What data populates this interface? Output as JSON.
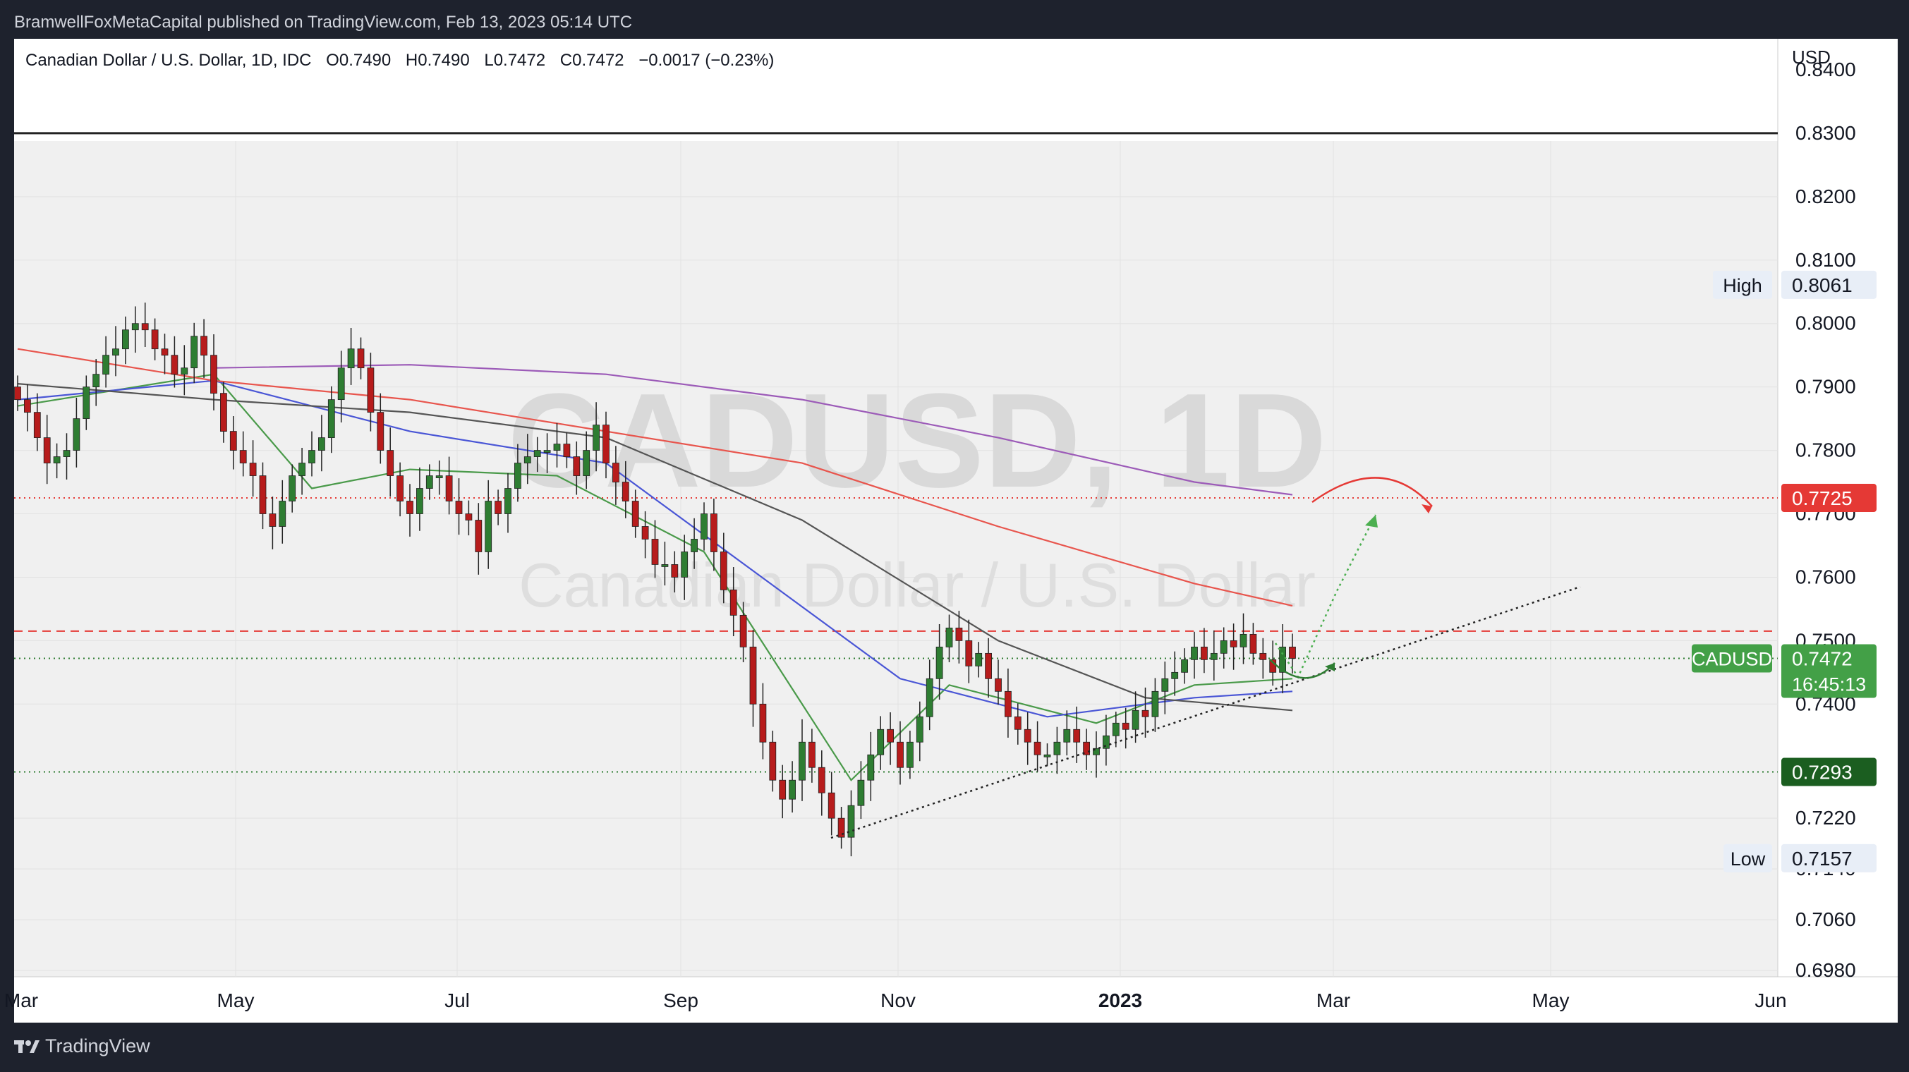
{
  "header": {
    "published": "BramwellFoxMetaCapital published on TradingView.com, Feb 13, 2023 05:14 UTC"
  },
  "legend": {
    "symbol": "Canadian Dollar / U.S. Dollar, 1D, IDC",
    "open": "O0.7490",
    "high": "H0.7490",
    "low": "L0.7472",
    "close": "C0.7472",
    "change": "−0.0017 (−0.23%)"
  },
  "watermark": {
    "ticker": "CADUSD, 1D",
    "name": "Canadian Dollar / U.S. Dollar"
  },
  "footer": {
    "brand": "TradingView"
  },
  "colors": {
    "up": "#2e7d32",
    "down": "#b71c1c",
    "sma_fast": "#4a9a4a",
    "sma_mid": "#4a56d6",
    "sma_slow": "#555555",
    "sma_200": "#e8554d",
    "sma_long": "#9c5bb8",
    "red_level": "#e53935",
    "green_level": "#2e7d32",
    "plot_bg": "#f0f0f0"
  },
  "chart_data": {
    "type": "candlestick",
    "currency": "USD",
    "x_labels": [
      "Mar",
      "May",
      "Jul",
      "Sep",
      "Nov",
      "2023",
      "Mar",
      "May",
      "Jun"
    ],
    "y_ticks": [
      "0.8400",
      "0.8300",
      "0.8200",
      "0.8100",
      "0.8000",
      "0.7900",
      "0.7800",
      "0.7700",
      "0.7600",
      "0.7500",
      "0.7400",
      "0.7220",
      "0.7140",
      "0.7060",
      "0.6980"
    ],
    "price_range": [
      0.697,
      0.841
    ],
    "levels": {
      "high": {
        "label": "High",
        "value": "0.8061"
      },
      "low": {
        "label": "Low",
        "value": "0.7157"
      },
      "current": {
        "label": "CADUSD",
        "value": "0.7472",
        "countdown": "16:45:13"
      },
      "red": {
        "value": "0.7725"
      },
      "green": {
        "value": "0.7293"
      },
      "resistance_line": 0.83,
      "dashed_resistance": 0.7515
    },
    "ohlc_closes": [
      0.788,
      0.786,
      0.782,
      0.778,
      0.779,
      0.78,
      0.785,
      0.79,
      0.792,
      0.795,
      0.796,
      0.799,
      0.8,
      0.799,
      0.796,
      0.795,
      0.792,
      0.793,
      0.798,
      0.795,
      0.789,
      0.783,
      0.78,
      0.778,
      0.776,
      0.77,
      0.768,
      0.772,
      0.776,
      0.778,
      0.78,
      0.782,
      0.788,
      0.793,
      0.796,
      0.793,
      0.786,
      0.78,
      0.776,
      0.772,
      0.77,
      0.774,
      0.776,
      0.776,
      0.772,
      0.77,
      0.769,
      0.764,
      0.772,
      0.77,
      0.774,
      0.778,
      0.779,
      0.78,
      0.78,
      0.781,
      0.779,
      0.776,
      0.78,
      0.784,
      0.778,
      0.775,
      0.772,
      0.768,
      0.766,
      0.762,
      0.762,
      0.76,
      0.764,
      0.766,
      0.77,
      0.764,
      0.758,
      0.754,
      0.749,
      0.74,
      0.734,
      0.728,
      0.725,
      0.728,
      0.734,
      0.73,
      0.726,
      0.722,
      0.719,
      0.724,
      0.728,
      0.732,
      0.736,
      0.734,
      0.73,
      0.734,
      0.738,
      0.744,
      0.749,
      0.752,
      0.75,
      0.746,
      0.748,
      0.744,
      0.742,
      0.738,
      0.736,
      0.734,
      0.732,
      0.732,
      0.734,
      0.736,
      0.734,
      0.732,
      0.733,
      0.735,
      0.737,
      0.736,
      0.739,
      0.738,
      0.742,
      0.744,
      0.745,
      0.747,
      0.749,
      0.747,
      0.748,
      0.75,
      0.749,
      0.751,
      0.748,
      0.747,
      0.745,
      0.749,
      0.7472
    ],
    "moving_averages": [
      {
        "name": "fast",
        "points": [
          [
            0,
            0.787
          ],
          [
            20,
            0.792
          ],
          [
            30,
            0.774
          ],
          [
            40,
            0.777
          ],
          [
            55,
            0.776
          ],
          [
            70,
            0.764
          ],
          [
            85,
            0.728
          ],
          [
            95,
            0.743
          ],
          [
            110,
            0.737
          ],
          [
            120,
            0.743
          ],
          [
            130,
            0.744
          ]
        ]
      },
      {
        "name": "mid",
        "points": [
          [
            0,
            0.788
          ],
          [
            20,
            0.791
          ],
          [
            40,
            0.783
          ],
          [
            60,
            0.778
          ],
          [
            75,
            0.761
          ],
          [
            90,
            0.744
          ],
          [
            105,
            0.738
          ],
          [
            120,
            0.741
          ],
          [
            130,
            0.742
          ]
        ]
      },
      {
        "name": "slow",
        "points": [
          [
            0,
            0.7905
          ],
          [
            20,
            0.788
          ],
          [
            40,
            0.786
          ],
          [
            60,
            0.782
          ],
          [
            80,
            0.769
          ],
          [
            100,
            0.75
          ],
          [
            115,
            0.741
          ],
          [
            130,
            0.739
          ]
        ]
      },
      {
        "name": "sma200",
        "points": [
          [
            0,
            0.796
          ],
          [
            20,
            0.791
          ],
          [
            40,
            0.788
          ],
          [
            60,
            0.783
          ],
          [
            80,
            0.778
          ],
          [
            100,
            0.768
          ],
          [
            120,
            0.759
          ],
          [
            130,
            0.7555
          ]
        ]
      },
      {
        "name": "long",
        "points": [
          [
            20,
            0.793
          ],
          [
            40,
            0.7935
          ],
          [
            60,
            0.792
          ],
          [
            80,
            0.788
          ],
          [
            100,
            0.782
          ],
          [
            120,
            0.775
          ],
          [
            130,
            0.773
          ]
        ]
      }
    ]
  }
}
